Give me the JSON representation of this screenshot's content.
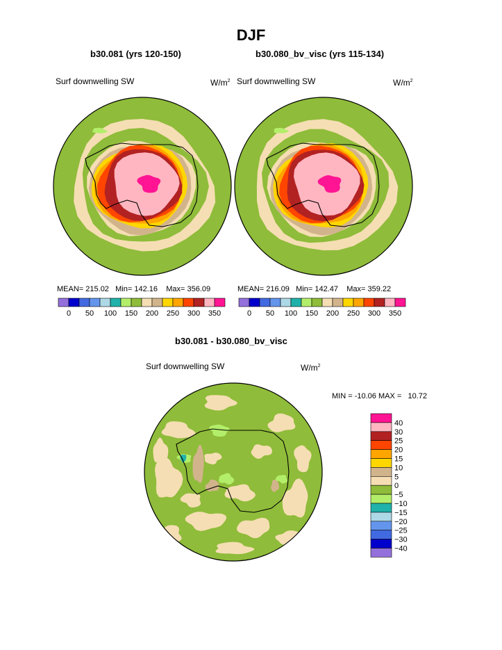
{
  "page_title": "DJF",
  "panels": [
    {
      "title": "b30.081 (yrs 120-150)",
      "variable": "Surf downwelling SW",
      "units": "W/m",
      "units_sup": "2",
      "stats": {
        "mean_label": "MEAN=",
        "mean": "215.02",
        "min_label": "Min=",
        "min": "142.16",
        "max_label": "Max=",
        "max": "356.09"
      }
    },
    {
      "title": "b30.080_bv_visc (yrs 115-134)",
      "variable": "Surf downwelling SW",
      "units": "W/m",
      "units_sup": "2",
      "stats": {
        "mean_label": "MEAN=",
        "mean": "216.09",
        "min_label": "Min=",
        "min": "142.47",
        "max_label": "Max=",
        "max": "359.22"
      }
    },
    {
      "title": "b30.081 - b30.080_bv_visc",
      "variable": "Surf downwelling SW",
      "units": "W/m",
      "units_sup": "2",
      "stats": {
        "min_label": "MIN =",
        "min": "-10.06",
        "max_label": "MAX =",
        "max": "10.72"
      }
    }
  ],
  "chart_data": [
    {
      "type": "heatmap",
      "projection": "south-polar-stereographic",
      "title": "b30.081 (yrs 120-150)",
      "field": "Surf downwelling SW",
      "units": "W/m2",
      "mean": 215.02,
      "min": 142.16,
      "max": 356.09,
      "colorbar": {
        "orientation": "horizontal",
        "levels": [
          0,
          25,
          50,
          75,
          100,
          125,
          150,
          175,
          200,
          225,
          250,
          275,
          300,
          325,
          350
        ],
        "tick_labels": [
          "0",
          "50",
          "100",
          "150",
          "200",
          "250",
          "300",
          "350"
        ],
        "colors": [
          "#9370db",
          "#0000cd",
          "#4169e1",
          "#6495ed",
          "#add8e6",
          "#20b2aa",
          "#b3ee6a",
          "#8fbc3a",
          "#f5deb3",
          "#d2b48c",
          "#ffd700",
          "#ffa500",
          "#ff4500",
          "#b22222",
          "#ffb6c1",
          "#ff1493"
        ]
      }
    },
    {
      "type": "heatmap",
      "projection": "south-polar-stereographic",
      "title": "b30.080_bv_visc (yrs 115-134)",
      "field": "Surf downwelling SW",
      "units": "W/m2",
      "mean": 216.09,
      "min": 142.47,
      "max": 359.22,
      "colorbar": {
        "orientation": "horizontal",
        "levels": [
          0,
          25,
          50,
          75,
          100,
          125,
          150,
          175,
          200,
          225,
          250,
          275,
          300,
          325,
          350
        ],
        "tick_labels": [
          "0",
          "50",
          "100",
          "150",
          "200",
          "250",
          "300",
          "350"
        ],
        "colors": [
          "#9370db",
          "#0000cd",
          "#4169e1",
          "#6495ed",
          "#add8e6",
          "#20b2aa",
          "#b3ee6a",
          "#8fbc3a",
          "#f5deb3",
          "#d2b48c",
          "#ffd700",
          "#ffa500",
          "#ff4500",
          "#b22222",
          "#ffb6c1",
          "#ff1493"
        ]
      }
    },
    {
      "type": "heatmap",
      "projection": "south-polar-stereographic",
      "title": "b30.081 - b30.080_bv_visc",
      "field": "Surf downwelling SW",
      "units": "W/m2",
      "min": -10.06,
      "max": 10.72,
      "colorbar": {
        "orientation": "vertical",
        "levels": [
          40,
          30,
          25,
          20,
          15,
          10,
          5,
          0,
          -5,
          -10,
          -15,
          -20,
          -25,
          -30,
          -40
        ],
        "tick_labels": [
          "40",
          "30",
          "25",
          "20",
          "15",
          "10",
          "5",
          "0",
          "−5",
          "−10",
          "−15",
          "−20",
          "−25",
          "−30",
          "−40"
        ],
        "colors": [
          "#ff1493",
          "#ffb6c1",
          "#b22222",
          "#ff4500",
          "#ffa500",
          "#ffd700",
          "#d2b48c",
          "#f5deb3",
          "#8fbc3a",
          "#b3ee6a",
          "#20b2aa",
          "#add8e6",
          "#6495ed",
          "#4169e1",
          "#0000cd",
          "#9370db"
        ]
      }
    }
  ]
}
